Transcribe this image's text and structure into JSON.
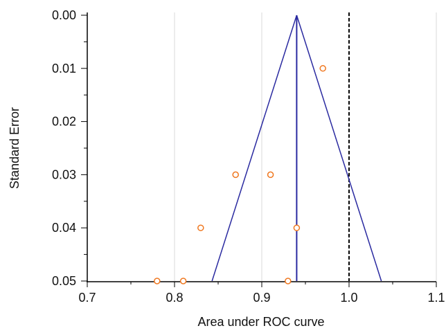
{
  "chart_data": {
    "type": "scatter",
    "title": "",
    "xlabel": "Area under ROC curve",
    "ylabel": "Standard Error",
    "xlim": [
      0.7,
      1.1
    ],
    "ylim": [
      0.05,
      0.0
    ],
    "y_axis_inverted": true,
    "x_ticks": [
      "0.7",
      "0.8",
      "0.9",
      "1.0",
      "1.1"
    ],
    "y_ticks": [
      "0.00",
      "0.01",
      "0.02",
      "0.03",
      "0.04",
      "0.05"
    ],
    "grid": "vertical",
    "points": [
      {
        "x": 0.97,
        "y": 0.01
      },
      {
        "x": 0.87,
        "y": 0.03
      },
      {
        "x": 0.91,
        "y": 0.03
      },
      {
        "x": 0.83,
        "y": 0.04
      },
      {
        "x": 0.94,
        "y": 0.04
      },
      {
        "x": 0.78,
        "y": 0.05
      },
      {
        "x": 0.81,
        "y": 0.05
      },
      {
        "x": 0.93,
        "y": 0.05
      }
    ],
    "pooled_estimate": 0.94,
    "funnel_limits": {
      "top": {
        "x": 0.94,
        "y": 0.0
      },
      "bottom_left": {
        "x": 0.843,
        "y": 0.05
      },
      "bottom_right": {
        "x": 1.037,
        "y": 0.05
      }
    },
    "reference_line": {
      "x": 1.0,
      "style": "dashed"
    },
    "colors": {
      "points": "#f07820",
      "funnel": "#2a2aa0",
      "reference": "#000000",
      "grid": "#d9d9d9",
      "axis": "#000000"
    }
  }
}
